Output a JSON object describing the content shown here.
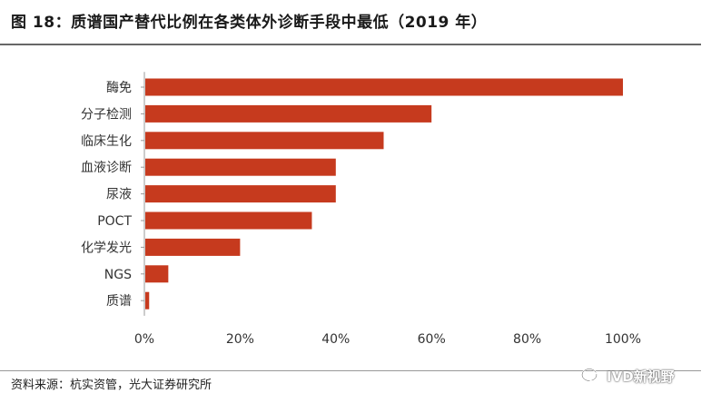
{
  "title": "图 18：质谱国产替代比例在各类体外诊断手段中最低（2019 年）",
  "source": "资料来源：杭实资管，光大证券研究所",
  "watermark": "IVD新视野",
  "colors": {
    "bar": "#C63A1E",
    "axis": "#999999"
  },
  "chart_data": {
    "type": "bar",
    "orientation": "horizontal",
    "title": "",
    "xlabel": "",
    "ylabel": "",
    "categories": [
      "酶免",
      "分子检测",
      "临床生化",
      "血液诊断",
      "尿液",
      "POCT",
      "化学发光",
      "NGS",
      "质谱"
    ],
    "values": [
      100,
      60,
      50,
      40,
      40,
      35,
      20,
      5,
      1
    ],
    "xlim": [
      0,
      100
    ],
    "xticks": [
      "0%",
      "20%",
      "40%",
      "60%",
      "80%",
      "100%"
    ],
    "grid": false,
    "legend": "none"
  }
}
